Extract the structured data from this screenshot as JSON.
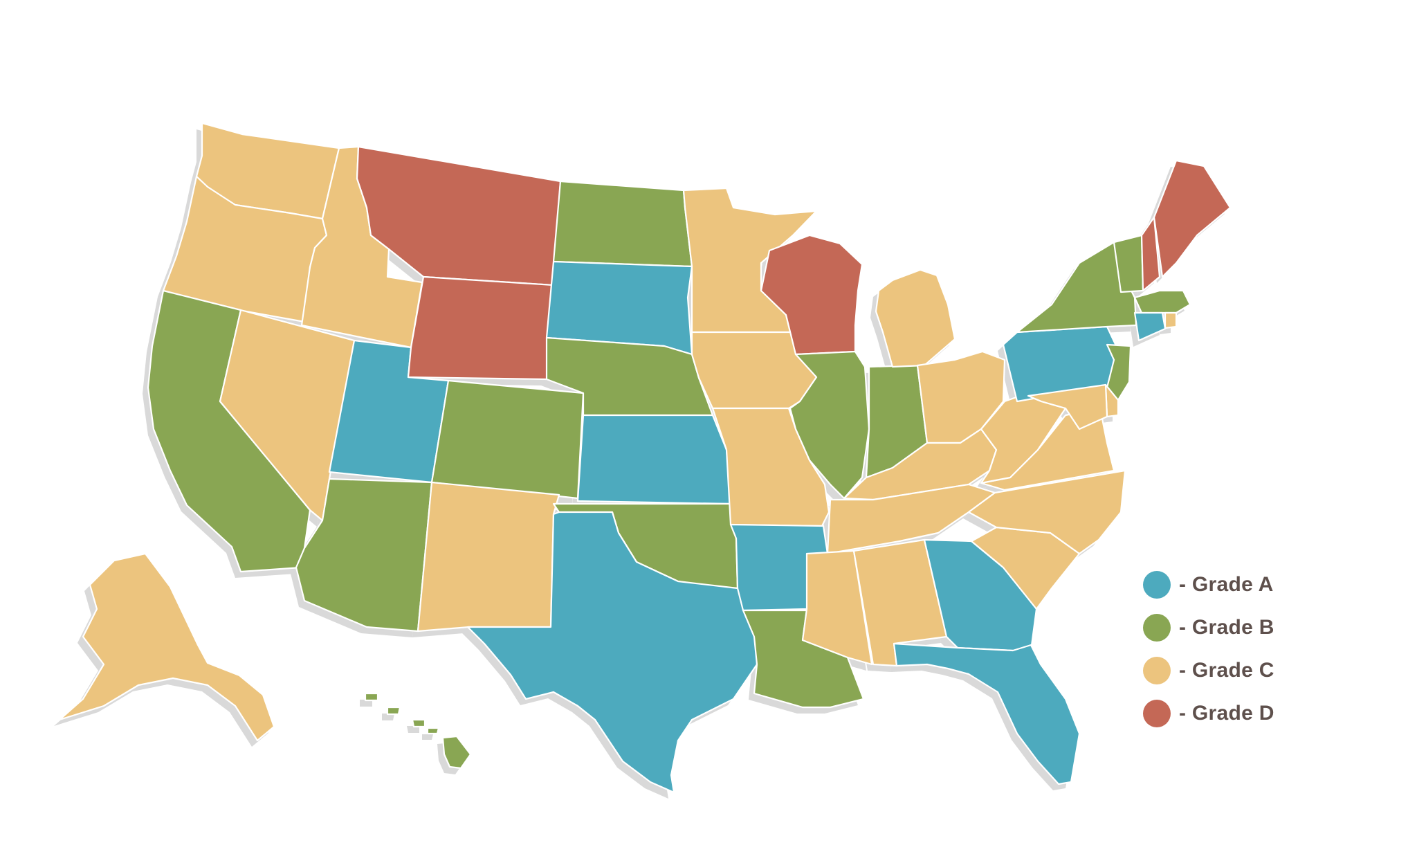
{
  "colors": {
    "grade_a": "#4daabe",
    "grade_b": "#89a653",
    "grade_c": "#ecc47e",
    "grade_d": "#c46856"
  },
  "legend": [
    {
      "grade": "A",
      "label": "- Grade A",
      "color": "#4daabe"
    },
    {
      "grade": "B",
      "label": "- Grade B",
      "color": "#89a653"
    },
    {
      "grade": "C",
      "label": "- Grade C",
      "color": "#ecc47e"
    },
    {
      "grade": "D",
      "label": "- Grade D",
      "color": "#c46856"
    }
  ],
  "state_grades": {
    "WA": "C",
    "OR": "C",
    "CA": "B",
    "ID": "C",
    "NV": "C",
    "AZ": "B",
    "UT": "A",
    "MT": "D",
    "WY": "D",
    "CO": "B",
    "NM": "C",
    "ND": "B",
    "SD": "A",
    "NE": "B",
    "KS": "A",
    "OK": "B",
    "TX": "A",
    "MN": "C",
    "IA": "C",
    "MO": "C",
    "AR": "A",
    "LA": "B",
    "WI": "D",
    "IL": "B",
    "MI": "C",
    "IN": "B",
    "OH": "C",
    "KY": "C",
    "TN": "C",
    "MS": "C",
    "AL": "C",
    "GA": "A",
    "FL": "A",
    "SC": "C",
    "NC": "C",
    "VA": "C",
    "WV": "C",
    "PA": "A",
    "NY": "B",
    "VT": "B",
    "NH": "D",
    "ME": "D",
    "MA": "B",
    "RI": "C",
    "CT": "A",
    "NJ": "B",
    "DE": "C",
    "MD": "C",
    "AK": "C",
    "HI": "B"
  }
}
